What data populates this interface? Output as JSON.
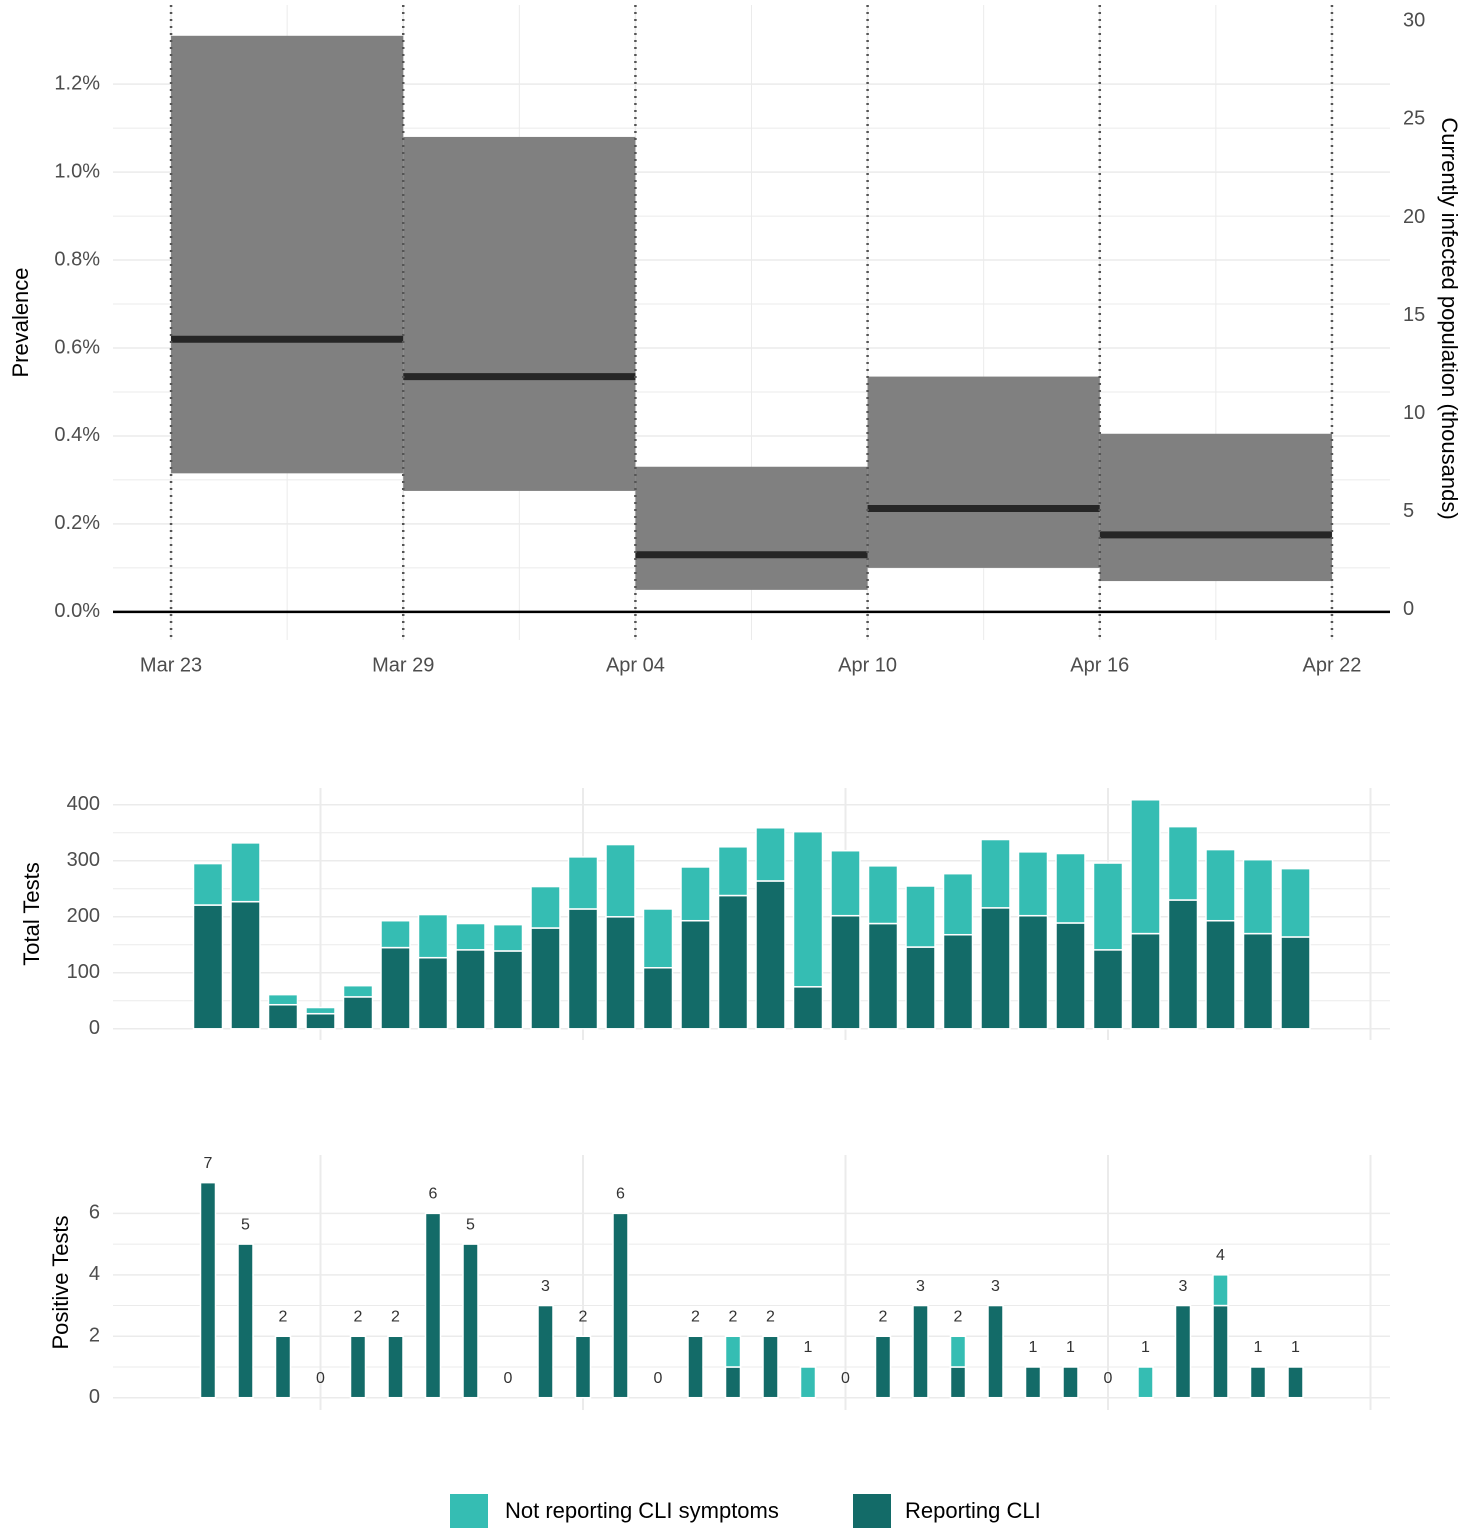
{
  "chart_data": [
    {
      "type": "step",
      "ylabel": "Prevalence",
      "y2label": "Currently infected population (thousands)",
      "xlim": [
        -1.5,
        31.5
      ],
      "xticks": [
        {
          "value": 0,
          "label": "Mar 23"
        },
        {
          "value": 6,
          "label": "Mar 29"
        },
        {
          "value": 12,
          "label": "Apr 04"
        },
        {
          "value": 18,
          "label": "Apr 10"
        },
        {
          "value": 24,
          "label": "Apr 16"
        },
        {
          "value": 30,
          "label": "Apr 22"
        }
      ],
      "ylim": [
        -0.064,
        1.38
      ],
      "yticks": [
        {
          "value": 0,
          "label": "0.0%"
        },
        {
          "value": 0.2,
          "label": "0.2%"
        },
        {
          "value": 0.4,
          "label": "0.4%"
        },
        {
          "value": 0.6,
          "label": "0.6%"
        },
        {
          "value": 0.8,
          "label": "0.8%"
        },
        {
          "value": 1.0,
          "label": "1.0%"
        },
        {
          "value": 1.2,
          "label": "1.2%"
        }
      ],
      "y2lim": [
        -1.43,
        30.93
      ],
      "y2ticks": [
        0,
        5,
        10,
        15,
        20,
        25,
        30
      ],
      "baseline": 0,
      "color": "#808080",
      "line_color": "#262626",
      "windows": [
        {
          "start": 0,
          "end": 6,
          "estimate": 0.62,
          "lower": 0.315,
          "upper": 1.31
        },
        {
          "start": 6,
          "end": 12,
          "estimate": 0.535,
          "lower": 0.275,
          "upper": 1.08
        },
        {
          "start": 12,
          "end": 18,
          "estimate": 0.13,
          "lower": 0.05,
          "upper": 0.33
        },
        {
          "start": 18,
          "end": 24,
          "estimate": 0.235,
          "lower": 0.1,
          "upper": 0.535
        },
        {
          "start": 24,
          "end": 30,
          "estimate": 0.175,
          "lower": 0.07,
          "upper": 0.405
        }
      ]
    },
    {
      "type": "stacked-bar",
      "ylabel": "Total Tests",
      "categories": [
        null,
        null,
        null,
        null,
        null,
        null,
        null,
        null,
        null,
        null,
        null,
        null,
        null,
        null,
        null,
        null,
        null,
        null,
        null,
        null,
        null,
        null,
        null,
        null,
        null,
        null,
        null,
        null,
        null,
        null
      ],
      "ylim": [
        -20,
        430
      ],
      "yticks": [
        0,
        100,
        200,
        300,
        400
      ],
      "legend": "bottom",
      "series": [
        {
          "name": "Not reporting CLI symptoms",
          "color": "#35bdb3",
          "values": [
            74,
            105,
            18,
            11,
            20,
            48,
            77,
            47,
            47,
            74,
            93,
            129,
            105,
            96,
            87,
            95,
            277,
            116,
            103,
            109,
            109,
            122,
            114,
            124,
            155,
            239,
            131,
            127,
            132,
            122
          ]
        },
        {
          "name": "Reporting CLI",
          "color": "#136b68",
          "values": [
            221,
            227,
            43,
            27,
            57,
            145,
            127,
            141,
            139,
            180,
            214,
            200,
            109,
            193,
            238,
            264,
            75,
            202,
            188,
            146,
            168,
            216,
            202,
            189,
            141,
            170,
            230,
            193,
            170,
            164
          ]
        }
      ]
    },
    {
      "type": "stacked-bar",
      "ylabel": "Positive Tests",
      "categories": [
        null,
        null,
        null,
        null,
        null,
        null,
        null,
        null,
        null,
        null,
        null,
        null,
        null,
        null,
        null,
        null,
        null,
        null,
        null,
        null,
        null,
        null,
        null,
        null,
        null,
        null,
        null,
        null,
        null,
        null
      ],
      "ylim": [
        -0.4,
        7.9
      ],
      "yticks": [
        0,
        2,
        4,
        6
      ],
      "series": [
        {
          "name": "Not reporting CLI symptoms",
          "color": "#35bdb3",
          "values": [
            0,
            0,
            0,
            0,
            0,
            0,
            0,
            0,
            0,
            0,
            0,
            0,
            0,
            0,
            1,
            0,
            1,
            0,
            0,
            0,
            1,
            0,
            0,
            0,
            0,
            1,
            0,
            1,
            0,
            0
          ]
        },
        {
          "name": "Reporting CLI",
          "color": "#136b68",
          "values": [
            7,
            5,
            2,
            0,
            2,
            2,
            6,
            5,
            0,
            3,
            2,
            6,
            0,
            2,
            1,
            2,
            0,
            0,
            2,
            3,
            1,
            3,
            1,
            1,
            0,
            0,
            3,
            3,
            1,
            1
          ]
        }
      ],
      "totals": [
        7,
        5,
        2,
        0,
        2,
        2,
        6,
        5,
        0,
        3,
        2,
        6,
        0,
        2,
        2,
        2,
        1,
        0,
        2,
        3,
        2,
        3,
        1,
        1,
        0,
        1,
        3,
        4,
        1,
        1
      ]
    }
  ]
}
